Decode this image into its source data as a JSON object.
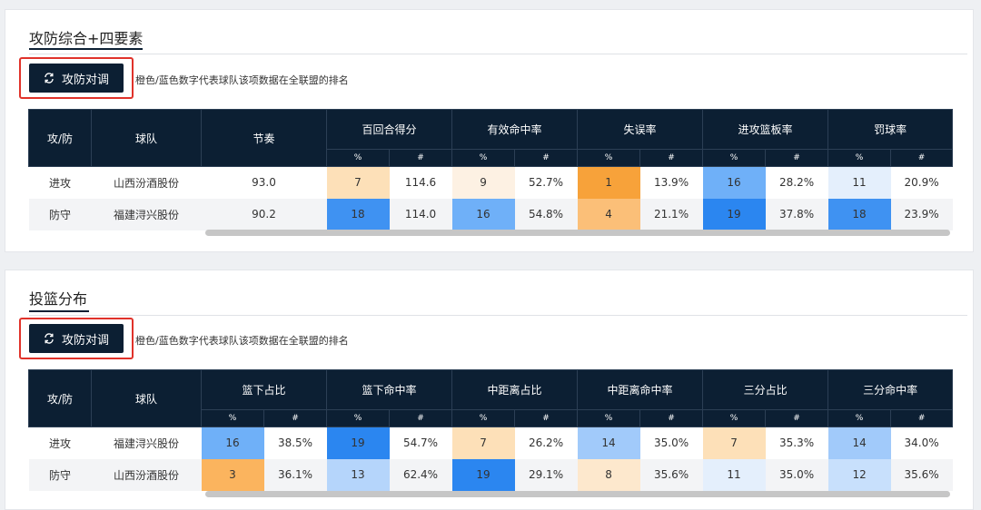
{
  "sections": [
    {
      "title": "攻防综合+四要素",
      "toggle_label": "攻防对调",
      "legend": "橙色/蓝色数字代表球队该项数据在全联盟的排名",
      "col_side": "攻/防",
      "col_team": "球队",
      "single_col": "节奏",
      "groups": [
        "百回合得分",
        "有效命中率",
        "失误率",
        "进攻篮板率",
        "罚球率"
      ],
      "sub_rank": "%",
      "sub_value": "#",
      "rows": [
        {
          "side": "进攻",
          "team": "山西汾酒股份",
          "single": "93.0",
          "cells": [
            {
              "rank": "7",
              "value": "114.6",
              "color": "#fde0b8"
            },
            {
              "rank": "9",
              "value": "52.7%",
              "color": "#fdf1e3"
            },
            {
              "rank": "1",
              "value": "13.9%",
              "color": "#f7a23a"
            },
            {
              "rank": "16",
              "value": "28.2%",
              "color": "#6fb0f8"
            },
            {
              "rank": "11",
              "value": "20.9%",
              "color": "#e4effc"
            }
          ]
        },
        {
          "side": "防守",
          "team": "福建浔兴股份",
          "single": "90.2",
          "cells": [
            {
              "rank": "18",
              "value": "114.0",
              "color": "#3f92f2"
            },
            {
              "rank": "16",
              "value": "54.8%",
              "color": "#6fb0f8"
            },
            {
              "rank": "4",
              "value": "21.1%",
              "color": "#fbbf78"
            },
            {
              "rank": "19",
              "value": "37.8%",
              "color": "#2b86f0"
            },
            {
              "rank": "18",
              "value": "23.9%",
              "color": "#3f92f2"
            }
          ]
        }
      ]
    },
    {
      "title": "投篮分布",
      "toggle_label": "攻防对调",
      "legend": "橙色/蓝色数字代表球队该项数据在全联盟的排名",
      "col_side": "攻/防",
      "col_team": "球队",
      "groups": [
        "篮下占比",
        "篮下命中率",
        "中距离占比",
        "中距离命中率",
        "三分占比",
        "三分命中率"
      ],
      "sub_rank": "%",
      "sub_value": "#",
      "rows": [
        {
          "side": "进攻",
          "team": "福建浔兴股份",
          "cells": [
            {
              "rank": "16",
              "value": "38.5%",
              "color": "#6fb0f8"
            },
            {
              "rank": "19",
              "value": "54.7%",
              "color": "#2b86f0"
            },
            {
              "rank": "7",
              "value": "26.2%",
              "color": "#fde0b8"
            },
            {
              "rank": "14",
              "value": "35.0%",
              "color": "#a1cafa"
            },
            {
              "rank": "7",
              "value": "35.3%",
              "color": "#fde0b8"
            },
            {
              "rank": "14",
              "value": "34.0%",
              "color": "#a1cafa"
            }
          ]
        },
        {
          "side": "防守",
          "team": "山西汾酒股份",
          "cells": [
            {
              "rank": "3",
              "value": "36.1%",
              "color": "#fbb45e"
            },
            {
              "rank": "13",
              "value": "62.4%",
              "color": "#b5d5fb"
            },
            {
              "rank": "19",
              "value": "29.1%",
              "color": "#2b86f0"
            },
            {
              "rank": "8",
              "value": "35.6%",
              "color": "#fde8cd"
            },
            {
              "rank": "11",
              "value": "35.0%",
              "color": "#e4effc"
            },
            {
              "rank": "12",
              "value": "35.6%",
              "color": "#c8e0fc"
            }
          ]
        }
      ]
    }
  ]
}
